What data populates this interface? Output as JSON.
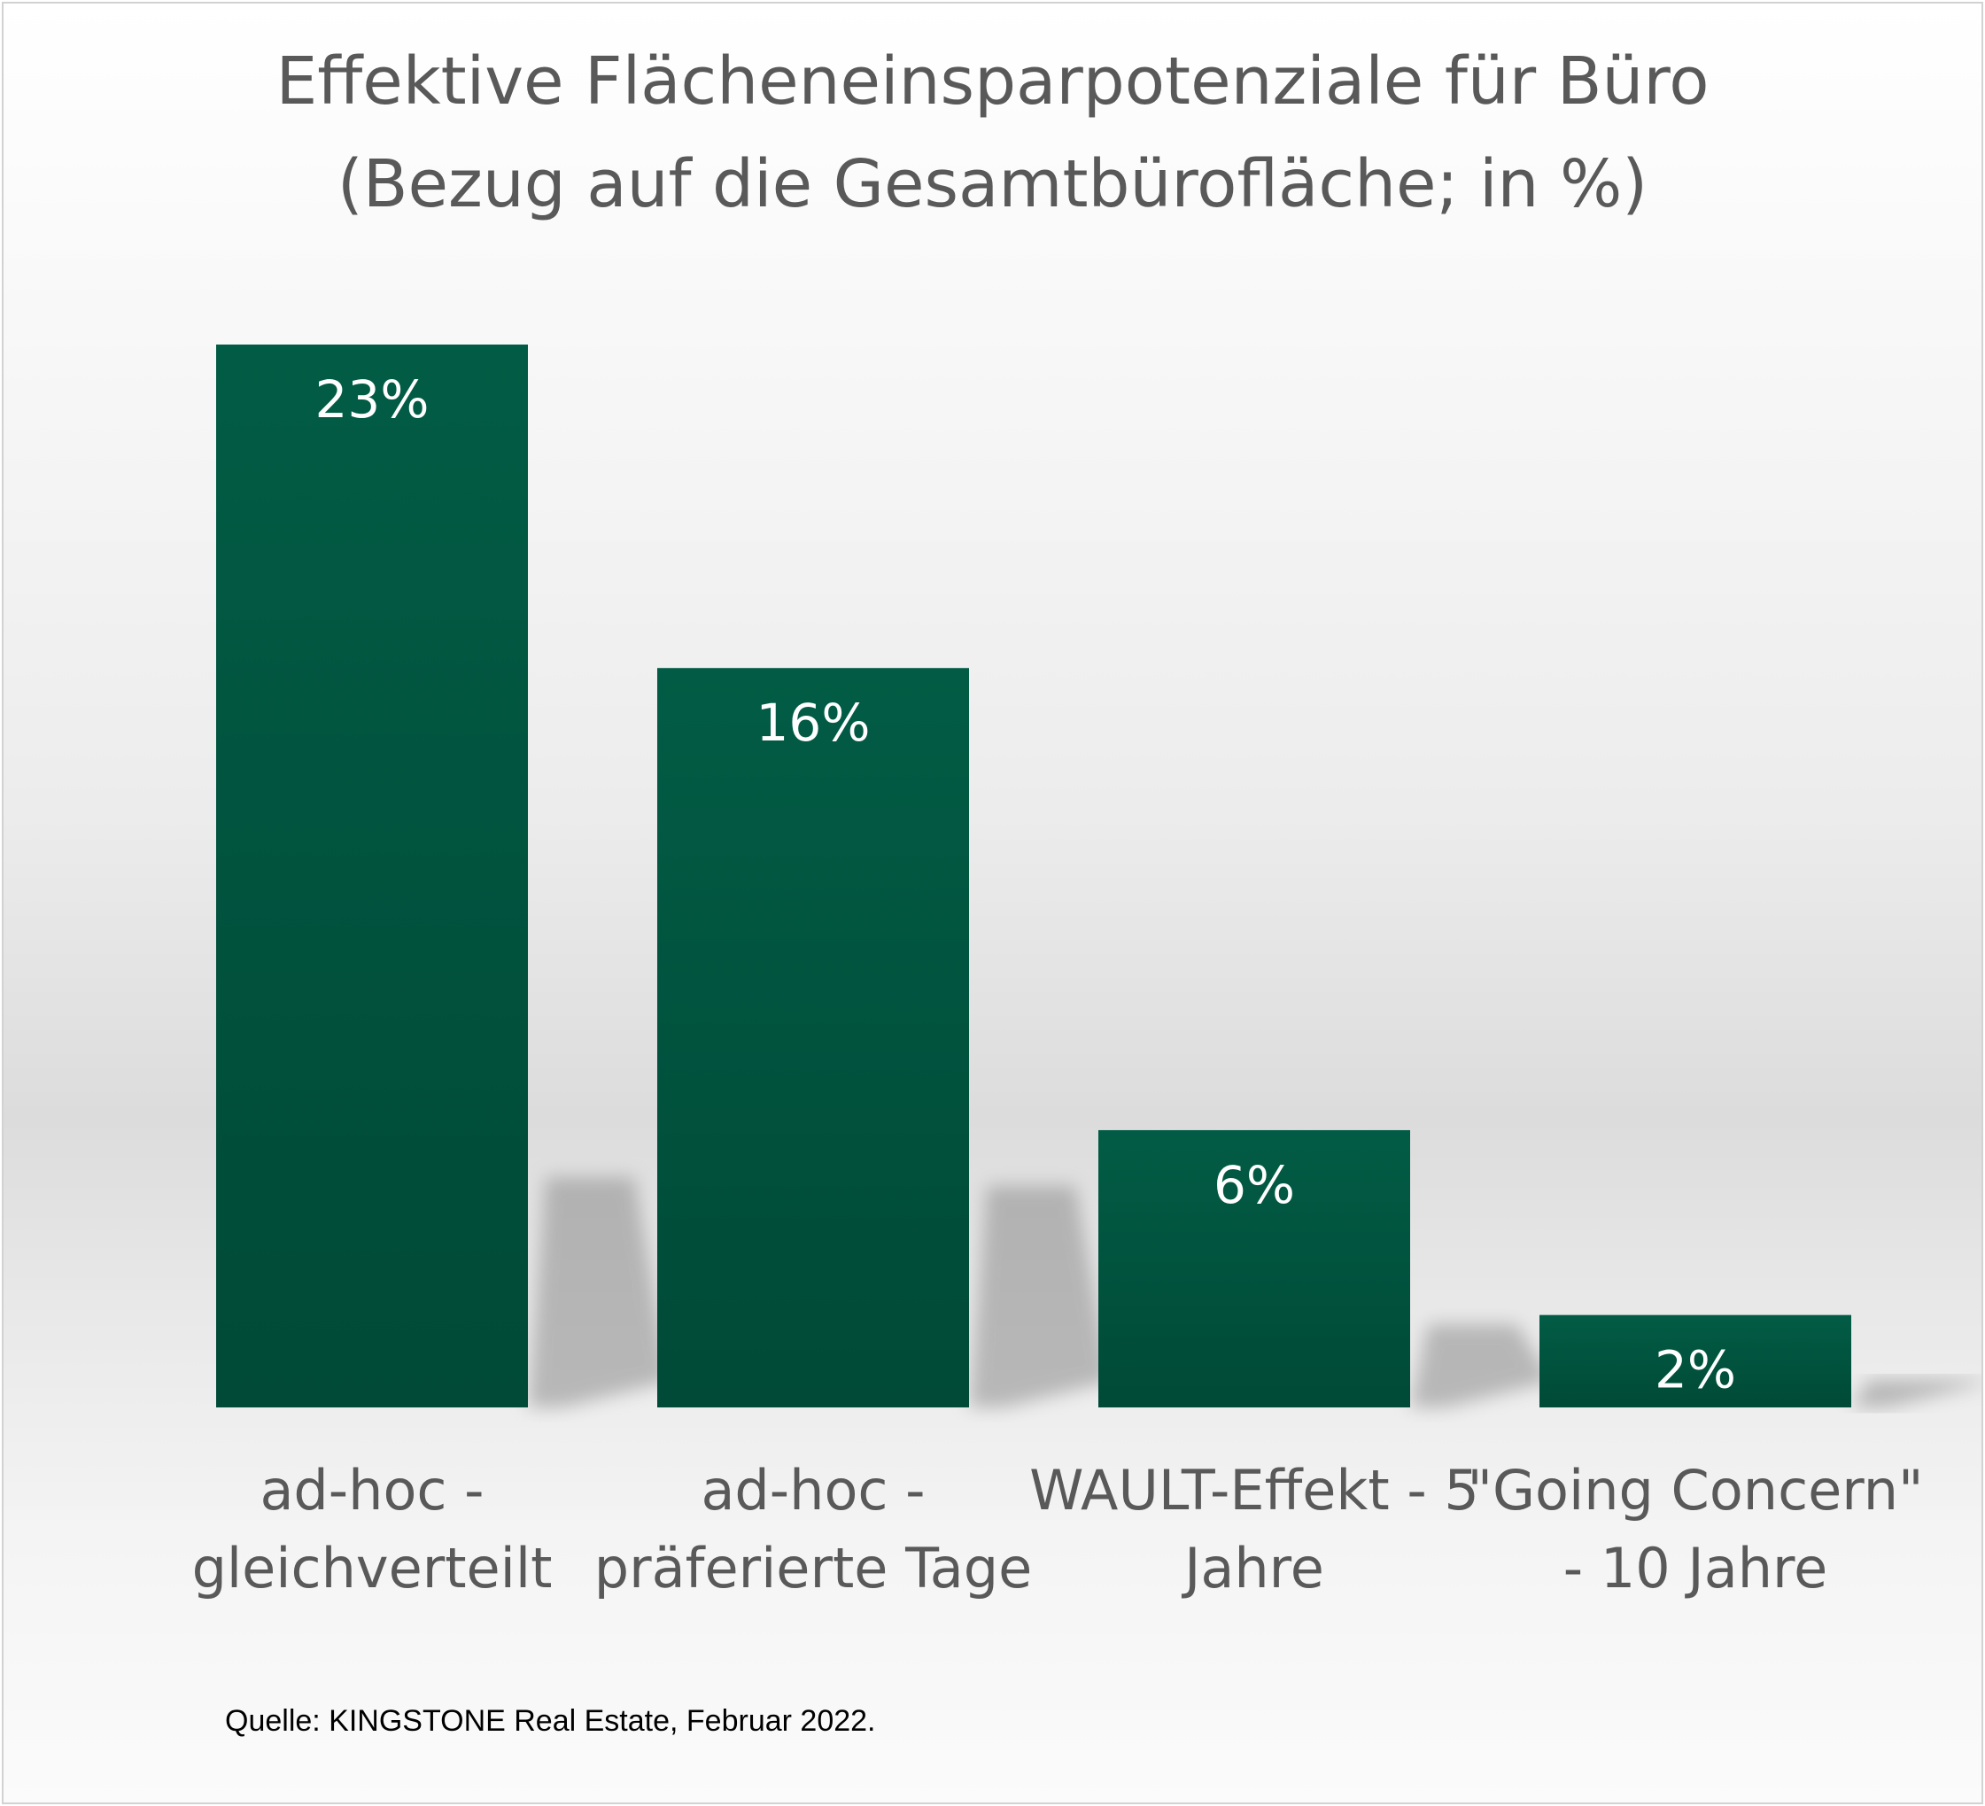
{
  "chart_data": {
    "type": "bar",
    "title": "Effektive Flächeneinsparpotenziale für Büro",
    "subtitle": "(Bezug auf die Gesamtbürofläche; in %)",
    "categories": [
      [
        "ad-hoc -",
        "gleichverteilt"
      ],
      [
        "ad-hoc -",
        "präferierte Tage"
      ],
      [
        "WAULT-Effekt - 5",
        "Jahre"
      ],
      [
        "\"Going Concern\"",
        "- 10 Jahre"
      ]
    ],
    "values": [
      23,
      16,
      6,
      2
    ],
    "data_labels": [
      "23%",
      "16%",
      "6%",
      "2%"
    ],
    "unit": "%",
    "ylim": [
      0,
      23
    ],
    "grid": false,
    "legend": "none",
    "colors": {
      "bar_top": "#025c45",
      "bar_bottom": "#004a37",
      "data_label": "#ffffff",
      "axis_label": "#595959",
      "shadow": "#8c8c8c"
    }
  },
  "footer": {
    "source": "Quelle: KINGSTONE Real Estate, Februar 2022."
  }
}
